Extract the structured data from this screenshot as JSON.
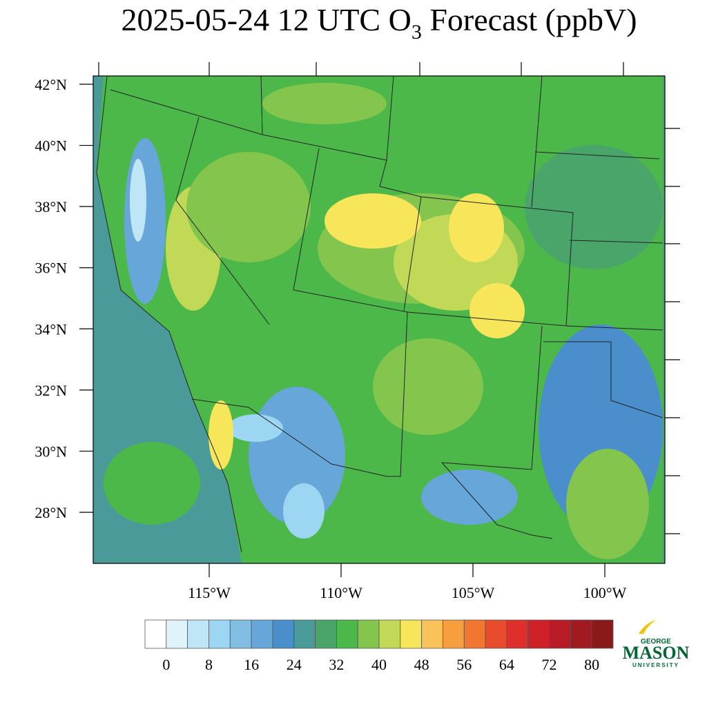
{
  "title": {
    "before": "2025-05-24 12 UTC O",
    "subscript": "3",
    "after": " Forecast (ppbV)"
  },
  "map": {
    "lat_ticks": [
      {
        "value": 42,
        "label": "42°N"
      },
      {
        "value": 40,
        "label": "40°N"
      },
      {
        "value": 38,
        "label": "38°N"
      },
      {
        "value": 36,
        "label": "36°N"
      },
      {
        "value": 34,
        "label": "34°N"
      },
      {
        "value": 32,
        "label": "32°N"
      },
      {
        "value": 30,
        "label": "30°N"
      },
      {
        "value": 28,
        "label": "28°N"
      }
    ],
    "lon_ticks": [
      {
        "value": -115,
        "label": "115°W"
      },
      {
        "value": -110,
        "label": "110°W"
      },
      {
        "value": -105,
        "label": "105°W"
      },
      {
        "value": -100,
        "label": "100°W"
      }
    ]
  },
  "colorbar": {
    "colors": [
      "#ffffff",
      "#e0f3fb",
      "#bfe6f7",
      "#9dd6f2",
      "#82bde3",
      "#66a6d9",
      "#4a8ecb",
      "#4a9a9a",
      "#4aa56a",
      "#4cb849",
      "#84c64d",
      "#c1d957",
      "#f7e65a",
      "#f9c35a",
      "#f79f3f",
      "#f2762f",
      "#e84c2a",
      "#e02f2a",
      "#cf2027",
      "#b81b25",
      "#a01a20",
      "#8a1a1a"
    ],
    "ticks": [
      0,
      8,
      16,
      24,
      32,
      40,
      48,
      56,
      64,
      72,
      80
    ]
  },
  "logo": {
    "top": "GEORGE",
    "main": "MASON",
    "bottom": "UNIVERSITY"
  }
}
